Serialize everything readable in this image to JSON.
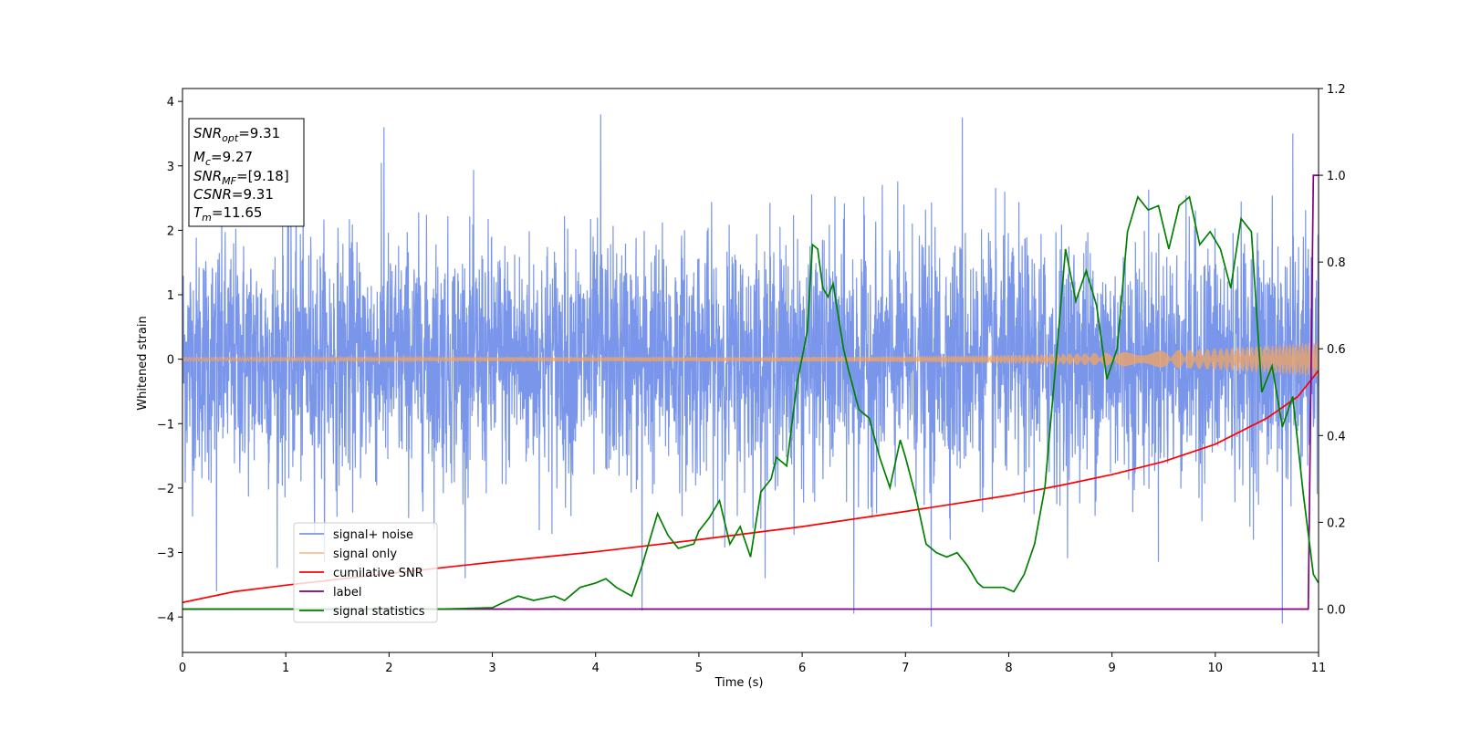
{
  "chart_data": {
    "type": "line",
    "xlabel": "Time (s)",
    "ylabel": "Whitened strain",
    "xlim": [
      0,
      11
    ],
    "ylim": [
      -4.55,
      4.2
    ],
    "y2lim": [
      -0.1,
      1.2
    ],
    "x_ticks": [
      "0",
      "1",
      "2",
      "3",
      "4",
      "5",
      "6",
      "7",
      "8",
      "9",
      "10",
      "11"
    ],
    "y_ticks": [
      "4",
      "3",
      "2",
      "1",
      "0",
      "−1",
      "−2",
      "−3",
      "−4"
    ],
    "y2_ticks": [
      "1.2",
      "1.0",
      "0.8",
      "0.6",
      "0.4",
      "0.2",
      "0.0"
    ],
    "grid": false,
    "legend_position": "lower-left",
    "annotation": [
      {
        "main": "SNR",
        "sub": "opt",
        "value": "=9.31"
      },
      {
        "main": "M",
        "sub": "c",
        "value": "=9.27"
      },
      {
        "main": "SNR",
        "sub": "MF",
        "value": "=[9.18]"
      },
      {
        "main": "CSNR",
        "sub": "",
        "value": "=9.31"
      },
      {
        "main": "T",
        "sub": "m",
        "value": "=11.65"
      }
    ],
    "series": [
      {
        "name": "signal+ noise",
        "color": "#4169e1",
        "axis": "left",
        "kind": "noise",
        "sigma": 0.93,
        "notable_peaks": [
          [
            0.33,
            -3.6
          ],
          [
            1.1,
            3.35
          ],
          [
            1.95,
            3.6
          ],
          [
            4.05,
            3.8
          ],
          [
            4.45,
            -3.9
          ],
          [
            6.5,
            -3.95
          ],
          [
            7.25,
            -4.15
          ],
          [
            7.55,
            3.75
          ],
          [
            10.65,
            -4.1
          ],
          [
            10.75,
            3.5
          ]
        ]
      },
      {
        "name": "signal only",
        "color": "#f4a460",
        "axis": "left",
        "kind": "chirp",
        "amplitude_start": 0.03,
        "amplitude_end": 0.27
      },
      {
        "name": "cumilative SNR",
        "color": "#ff0000",
        "axis": "right",
        "x": [
          0,
          0.5,
          1,
          2,
          3,
          4,
          5,
          6,
          7,
          8,
          8.5,
          9,
          9.5,
          10,
          10.5,
          10.8,
          11
        ],
        "values": [
          0.015,
          0.04,
          0.055,
          0.082,
          0.108,
          0.132,
          0.16,
          0.19,
          0.225,
          0.262,
          0.285,
          0.31,
          0.34,
          0.38,
          0.44,
          0.49,
          0.55
        ]
      },
      {
        "name": "label",
        "color": "#800080",
        "axis": "right",
        "x": [
          0,
          10.9,
          10.95,
          11
        ],
        "values": [
          0,
          0,
          1,
          1
        ]
      },
      {
        "name": "signal statistics",
        "color": "#008000",
        "axis": "right",
        "x": [
          0,
          0.5,
          1,
          1.5,
          2,
          2.5,
          3,
          3.15,
          3.25,
          3.4,
          3.6,
          3.7,
          3.85,
          4.0,
          4.1,
          4.2,
          4.35,
          4.45,
          4.6,
          4.7,
          4.8,
          4.95,
          5.0,
          5.1,
          5.2,
          5.3,
          5.4,
          5.5,
          5.6,
          5.7,
          5.75,
          5.85,
          5.95,
          6.05,
          6.1,
          6.15,
          6.2,
          6.25,
          6.3,
          6.4,
          6.45,
          6.55,
          6.65,
          6.75,
          6.85,
          6.95,
          7.0,
          7.1,
          7.2,
          7.3,
          7.4,
          7.5,
          7.6,
          7.7,
          7.75,
          7.85,
          7.95,
          8.05,
          8.15,
          8.25,
          8.35,
          8.45,
          8.55,
          8.65,
          8.75,
          8.85,
          8.95,
          9.05,
          9.15,
          9.25,
          9.35,
          9.45,
          9.55,
          9.65,
          9.75,
          9.85,
          9.95,
          10.05,
          10.15,
          10.25,
          10.35,
          10.45,
          10.55,
          10.65,
          10.75,
          10.85,
          10.95,
          11.0
        ],
        "values": [
          0,
          0,
          0,
          0,
          0,
          0,
          0.003,
          0.02,
          0.03,
          0.02,
          0.03,
          0.02,
          0.05,
          0.06,
          0.07,
          0.05,
          0.03,
          0.1,
          0.22,
          0.17,
          0.14,
          0.15,
          0.18,
          0.21,
          0.25,
          0.15,
          0.19,
          0.12,
          0.27,
          0.3,
          0.35,
          0.33,
          0.52,
          0.64,
          0.84,
          0.83,
          0.74,
          0.72,
          0.75,
          0.6,
          0.55,
          0.46,
          0.44,
          0.35,
          0.28,
          0.39,
          0.35,
          0.26,
          0.15,
          0.13,
          0.12,
          0.13,
          0.1,
          0.06,
          0.05,
          0.05,
          0.05,
          0.04,
          0.08,
          0.15,
          0.28,
          0.55,
          0.83,
          0.71,
          0.78,
          0.7,
          0.53,
          0.6,
          0.87,
          0.95,
          0.92,
          0.93,
          0.83,
          0.93,
          0.95,
          0.84,
          0.87,
          0.83,
          0.74,
          0.9,
          0.87,
          0.5,
          0.56,
          0.42,
          0.49,
          0.27,
          0.08,
          0.06
        ]
      }
    ]
  }
}
